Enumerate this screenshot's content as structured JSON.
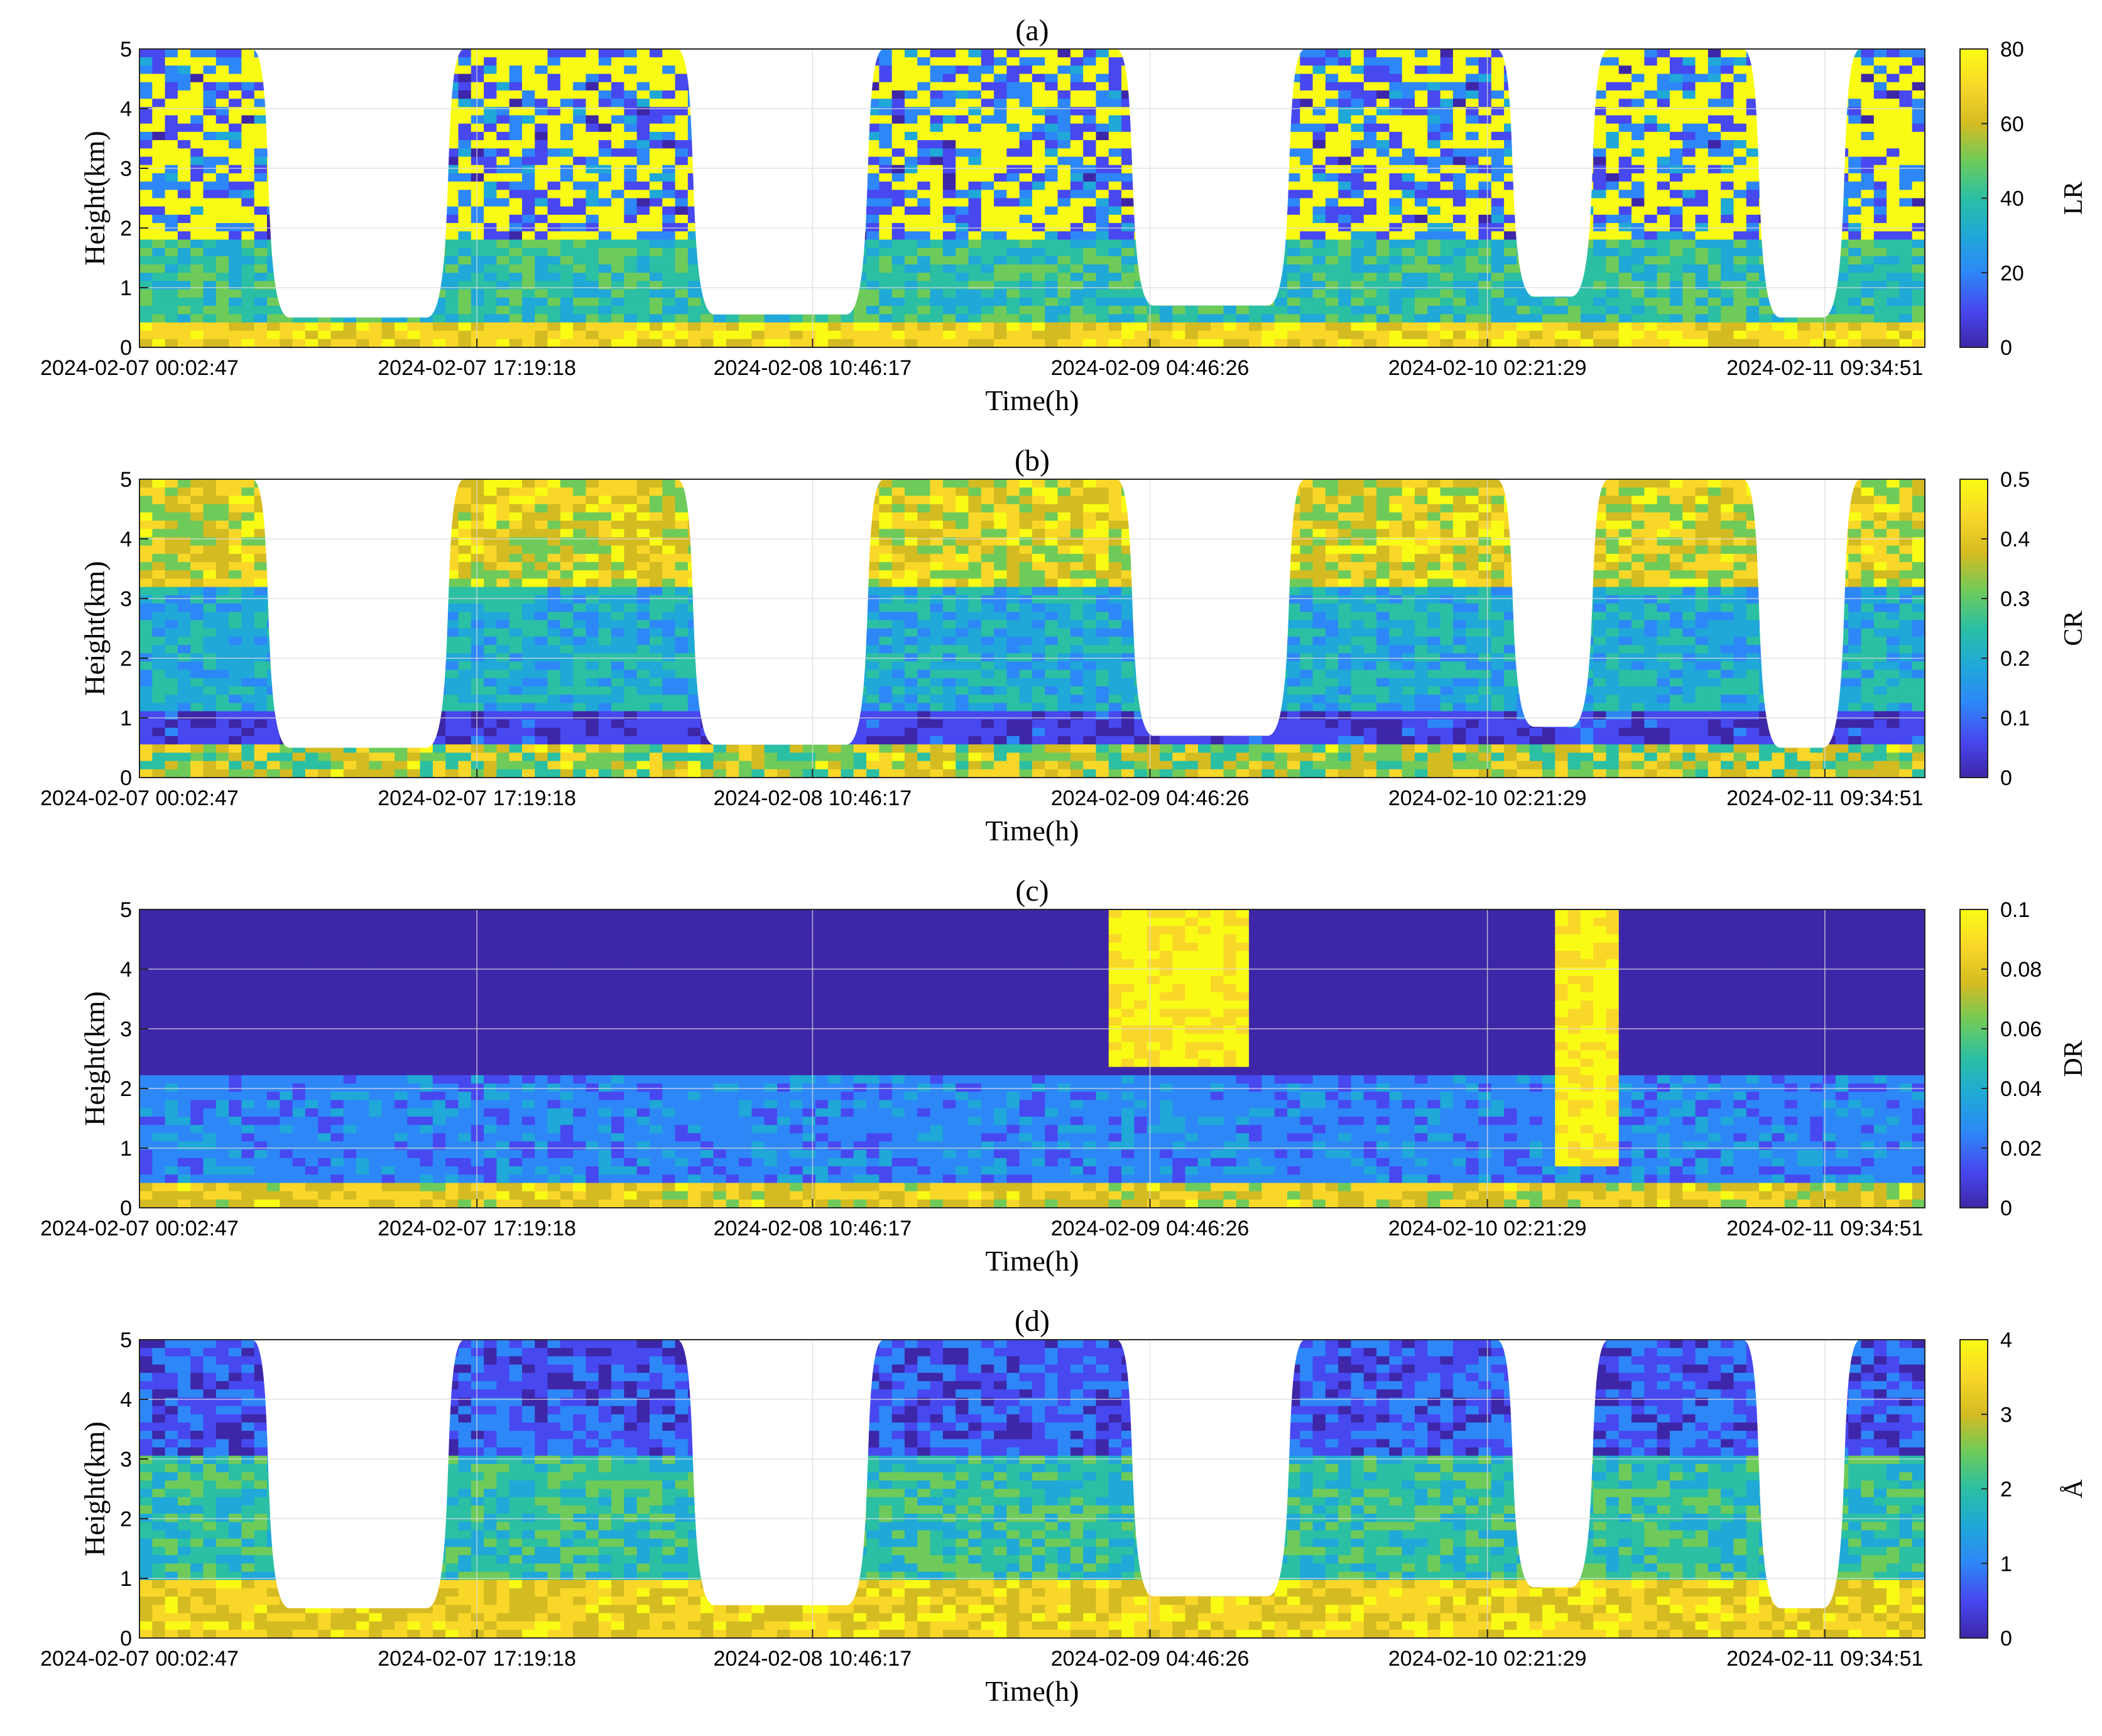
{
  "figure": {
    "panels": [
      {
        "id": "a",
        "title": "(a)",
        "colorbar_label": "LR"
      },
      {
        "id": "b",
        "title": "(b)",
        "colorbar_label": "CR"
      },
      {
        "id": "c",
        "title": "(c)",
        "colorbar_label": "DR"
      },
      {
        "id": "d",
        "title": "(d)",
        "colorbar_label": "Å"
      }
    ]
  },
  "colors": {
    "colormap": [
      "#3e26a8",
      "#4748f0",
      "#2e87f7",
      "#1fa8d8",
      "#2bbfa4",
      "#6ecb5a",
      "#d4bb22",
      "#f9d729",
      "#f9fb15"
    ],
    "no_data": "#ffffff",
    "grid": "#dcdcdc"
  },
  "chart_data": [
    {
      "type": "heatmap",
      "title": "(a)",
      "xlabel": "Time(h)",
      "ylabel": "Height(km)",
      "ylim": [
        0,
        5
      ],
      "yticks": [
        "0",
        "1",
        "2",
        "3",
        "4",
        "5"
      ],
      "xticks": [
        "2024-02-07 00:02:47",
        "2024-02-07 17:19:18",
        "2024-02-08 10:46:17",
        "2024-02-09 04:46:26",
        "2024-02-10 02:21:29",
        "2024-02-11 09:34:51"
      ],
      "colorbar": {
        "label": "LR",
        "range": [
          0,
          80
        ],
        "ticks": [
          "0",
          "20",
          "40",
          "60",
          "80"
        ]
      },
      "grid": true
    },
    {
      "type": "heatmap",
      "title": "(b)",
      "xlabel": "Time(h)",
      "ylabel": "Height(km)",
      "ylim": [
        0,
        5
      ],
      "yticks": [
        "0",
        "1",
        "2",
        "3",
        "4",
        "5"
      ],
      "xticks": [
        "2024-02-07 00:02:47",
        "2024-02-07 17:19:18",
        "2024-02-08 10:46:17",
        "2024-02-09 04:46:26",
        "2024-02-10 02:21:29",
        "2024-02-11 09:34:51"
      ],
      "colorbar": {
        "label": "CR",
        "range": [
          0,
          0.5
        ],
        "ticks": [
          "0",
          "0.1",
          "0.2",
          "0.3",
          "0.4",
          "0.5"
        ]
      },
      "grid": true
    },
    {
      "type": "heatmap",
      "title": "(c)",
      "xlabel": "Time(h)",
      "ylabel": "Height(km)",
      "ylim": [
        0,
        5
      ],
      "yticks": [
        "0",
        "1",
        "2",
        "3",
        "4",
        "5"
      ],
      "xticks": [
        "2024-02-07 00:02:47",
        "2024-02-07 17:19:18",
        "2024-02-08 10:46:17",
        "2024-02-09 04:46:26",
        "2024-02-10 02:21:29",
        "2024-02-11 09:34:51"
      ],
      "colorbar": {
        "label": "DR",
        "range": [
          0,
          0.1
        ],
        "ticks": [
          "0",
          "0.02",
          "0.04",
          "0.06",
          "0.08",
          "0.1"
        ]
      },
      "grid": true
    },
    {
      "type": "heatmap",
      "title": "(d)",
      "xlabel": "Time(h)",
      "ylabel": "Height(km)",
      "ylim": [
        0,
        5
      ],
      "yticks": [
        "0",
        "1",
        "2",
        "3",
        "4",
        "5"
      ],
      "xticks": [
        "2024-02-07 00:02:47",
        "2024-02-07 17:19:18",
        "2024-02-08 10:46:17",
        "2024-02-09 04:46:26",
        "2024-02-10 02:21:29",
        "2024-02-11 09:34:51"
      ],
      "colorbar": {
        "label": "Å",
        "range": [
          0,
          4
        ],
        "ticks": [
          "0",
          "1",
          "2",
          "3",
          "4"
        ]
      },
      "grid": true
    }
  ]
}
